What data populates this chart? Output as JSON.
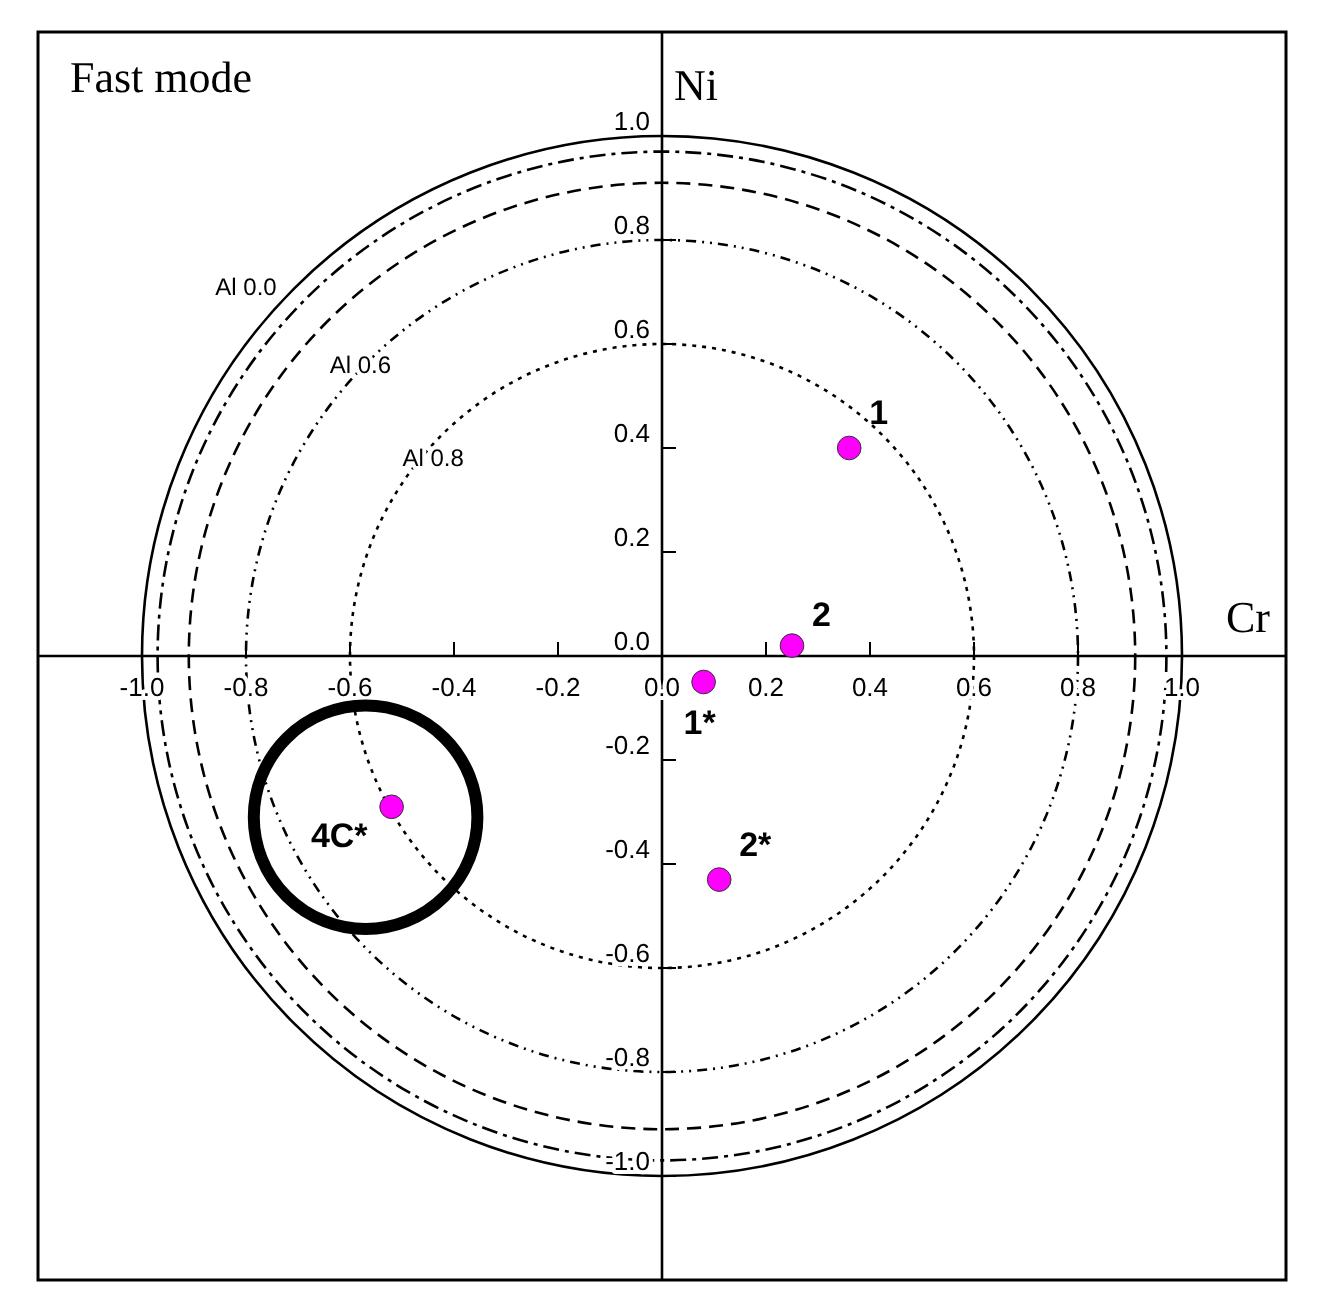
{
  "chart_data": {
    "type": "scatter",
    "title": "Fast mode",
    "xlabel": "Cr",
    "ylabel": "Ni",
    "marker": "circle",
    "xlim": [
      -1.2,
      1.2
    ],
    "ylim": [
      -1.2,
      1.2
    ],
    "xticks": [
      {
        "value": -1,
        "label": "-1.0"
      },
      {
        "value": -0.8,
        "label": "-0.8"
      },
      {
        "value": -0.6,
        "label": "-0.6"
      },
      {
        "value": -0.4,
        "label": "-0.4"
      },
      {
        "value": -0.2,
        "label": "-0.2"
      },
      {
        "value": 0,
        "label": "0.0"
      },
      {
        "value": 0.2,
        "label": "0.2"
      },
      {
        "value": 0.4,
        "label": "0.4"
      },
      {
        "value": 0.6,
        "label": "0.6"
      },
      {
        "value": 0.8,
        "label": "0.8"
      },
      {
        "value": 1,
        "label": "1.0"
      }
    ],
    "yticks": [
      {
        "value": -1,
        "label": "-1.0"
      },
      {
        "value": -0.8,
        "label": "-0.8"
      },
      {
        "value": -0.6,
        "label": "-0.6"
      },
      {
        "value": -0.4,
        "label": "-0.4"
      },
      {
        "value": -0.2,
        "label": "-0.2"
      },
      {
        "value": 0,
        "label": "0.0"
      },
      {
        "value": 0.2,
        "label": "0.2"
      },
      {
        "value": 0.4,
        "label": "0.4"
      },
      {
        "value": 0.6,
        "label": "0.6"
      },
      {
        "value": 0.8,
        "label": "0.8"
      },
      {
        "value": 1,
        "label": "1.0"
      }
    ],
    "annotations": [
      "Al 0.0",
      "Al 0.6",
      "Al 0.8"
    ],
    "series": [
      {
        "name": "1",
        "color": "#ff00ff",
        "x": [
          0.36
        ],
        "values": [
          0.4
        ]
      },
      {
        "name": "2",
        "color": "#ff00ff",
        "x": [
          0.25
        ],
        "values": [
          0.02
        ]
      },
      {
        "name": "1*",
        "color": "#ff00ff",
        "x": [
          0.08
        ],
        "values": [
          -0.05
        ]
      },
      {
        "name": "2*",
        "color": "#ff00ff",
        "x": [
          0.11
        ],
        "values": [
          -0.43
        ]
      },
      {
        "name": "4C*",
        "color": "#ff00ff",
        "x": [
          -0.52
        ],
        "values": [
          -0.29
        ]
      }
    ]
  }
}
